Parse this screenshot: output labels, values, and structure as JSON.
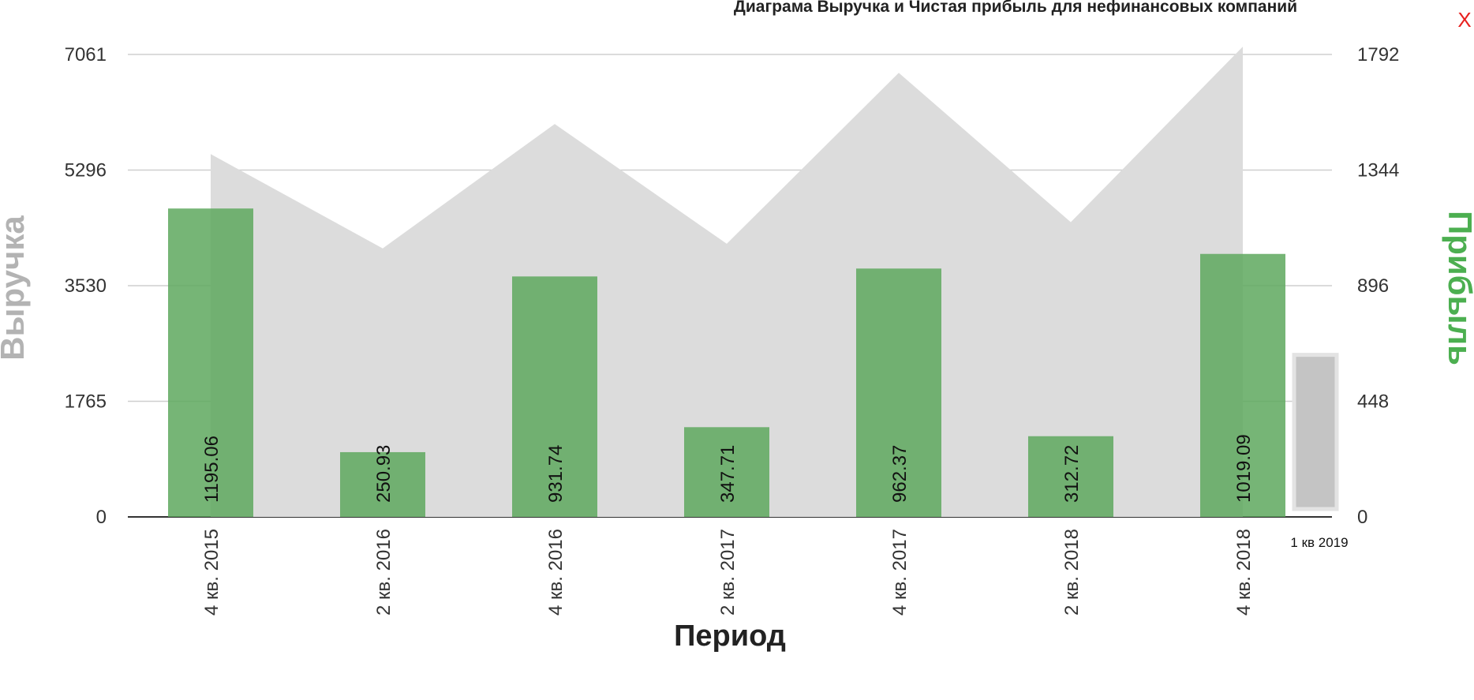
{
  "close_label": "X",
  "chart_data": {
    "type": "bar",
    "title": "Диаграма Выручка и Чистая прибыль для нефинансовых компаний",
    "xlabel": "Период",
    "ylabel_left": "Выручка",
    "ylabel_right": "Прибыль",
    "categories": [
      "4 кв. 2015",
      "2 кв. 2016",
      "4 кв. 2016",
      "2 кв. 2017",
      "4 кв. 2017",
      "2 кв. 2018",
      "4 кв. 2018"
    ],
    "y_left_ticks": [
      "0",
      "1765",
      "3530",
      "5296",
      "7061"
    ],
    "y_right_ticks": [
      "0",
      "448",
      "896",
      "1344",
      "1792"
    ],
    "ylim_left": [
      0,
      7061
    ],
    "ylim_right": [
      0,
      1792
    ],
    "series": [
      {
        "name": "Выручка",
        "chart_type": "area",
        "axis": "left",
        "color": "#dcdcdc",
        "values": [
          5540,
          4100,
          6000,
          4170,
          6780,
          4500,
          7180
        ]
      },
      {
        "name": "Прибыль",
        "chart_type": "bar",
        "axis": "right",
        "color": "#5ea85e",
        "values": [
          1195.06,
          250.93,
          931.74,
          347.71,
          962.37,
          312.72,
          1019.09
        ],
        "labels": [
          "1195.06",
          "250.93",
          "931.74",
          "347.71",
          "962.37",
          "312.72",
          "1019.09"
        ]
      }
    ],
    "extra_period": {
      "label": "1 кв 2019",
      "value": 628,
      "axis": "right",
      "color": "#c4c4c4"
    },
    "ylabel_left_color": "#b3b3b3",
    "ylabel_right_color": "#4caf50",
    "grid": true
  }
}
